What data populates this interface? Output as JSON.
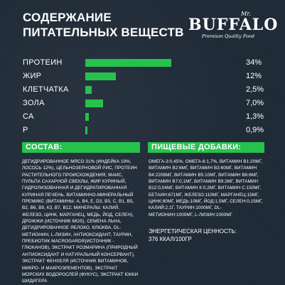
{
  "title": {
    "line1": "СОДЕРЖАНИЕ",
    "line2": "ПИТАТЕЛЬНЫХ ВЕЩЕСТВ"
  },
  "logo": {
    "mr": "Mr.",
    "main": "BUFFALO",
    "sub": "Premium Quality Food"
  },
  "nutrients": [
    {
      "name": "ПРОТЕИН",
      "value": "34%",
      "fraction": 0.34
    },
    {
      "name": "ЖИР",
      "value": "12%",
      "fraction": 0.12
    },
    {
      "name": "КЛЕТЧАТКА",
      "value": "2,5%",
      "fraction": 0.025
    },
    {
      "name": "ЗОЛА",
      "value": "7,0%",
      "fraction": 0.07
    },
    {
      "name": "СА",
      "value": "1,3%",
      "fraction": 0.013
    },
    {
      "name": "Р",
      "value": "0,9%",
      "fraction": 0.009
    }
  ],
  "colors": {
    "accent": "#27c24c",
    "background": "#1f2a37"
  },
  "composition": {
    "header": "СОСТАВ:",
    "text": "ДЕГИДРИРОВАННОЕ МЯСО 31% (ИНДЕЙКА 19%, ЛОСОСЬ 12%), ЦЕЛЬНОЗЕРНОВОЙ РИС, ПРОТЕИН РАСТИТЕЛЬНОГО ПРОИСХОЖДЕНИЯ, МАИС, ПУЛЬПА САХАРНОЙ СВЕКЛЫ, ЖИР КУРИНЫЙ, ГИДРОЛИЗОВАННАЯ И ДЕГИДРАТИРОВАННАЯ КУРИНАЯ ПЕЧЕНЬ, ВИТАМИННО-МИНЕРАЛЬНЫЙ ПРЕМИКС (ВИТАМИНЫ: А, В4, Е, D3, В3, С, В1, В5, В2, В6, В9, К3, В7, В12; МИНЕРАЛЫ: КАЛИЙ, ЖЕЛЕЗО, ЦИНК, МАРГАНЕЦ, МЕДЬ, ЙОД, СЕЛЕН), ДРОЖЖИ (ИСТОЧНИК MOS), СЕМЕНА ЛЬНА, ДЕГИДРИРОВАННОЕ ЯБЛОКО, КЛЮКВА, DL-МЕТИОНИН, L-ЛИЗИН, АНТИОКСИДАНТ, ТАУРИН, ПРЕБИОТИК MACROGARD®(ИСТОЧНИК - ГЛЮКАНОВ), ЭКСТРАКТ РОЗМАРИНА (ПРИРОДНЫЙ АНТИОКСИДАНТ И НАТУРАЛЬНЫЙ КОНСЕРВАНТ), ЭКСТРАКТ ФЕНХЕЛЯ (ИСТОЧНИК ВИТАМИНОВ, МИКРО- И МАКРОЭЛЕМЕНТОВ), ЭКСТРАКТ МОРСКИХ ВОДОРОСЛЕЙ (ФУКУС), ЭКСТРАКТ ЮККИ ШИДИГЕРА"
  },
  "additives": {
    "header": "ПИЩЕВЫЕ ДОБАВКИ:",
    "text": "ОМЕГА-3:0,45%, ОМЕГА-6:1,7%, ВИТАМИН В1:20МГ, ВИТАМИН В2:6МГ, ВИТАМИН В3:60МГ, ВИТАМИН В4:2208МГ, ВИТАМИН В5:10МГ, ВИТАМИН В6:6МГ, ВИТАМИН В7:0,1МГ, ВИТАМИН В9:2МГ, ВИТАМИН В12:0,04МГ, ВИТАМИН К:0,2МГ, ВИТАМИН С:150МГ, БЕТАИН:671МГ, ЖЕЛЕЗО:110МГ, МАРГАНЕЦ:15МГ, ЦИНК:80МГ, МЕДЬ:10МГ, ЙОД:1,5МГ, СЕЛЕН:0,15МГ, КАЛИЙ:2,1Г, ТАУРИН:1000МГ, DL-МЕТИОНИН:1000МГ, L-ЛИЗИН:1000МГ",
    "energy_label": "ЭНЕРГЕТИЧЕСКАЯ ЦЕННОСТЬ:",
    "energy_value": "376 ККАЛ/100ГР"
  }
}
